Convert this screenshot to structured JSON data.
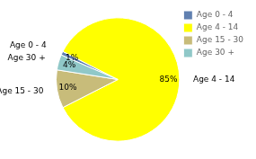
{
  "chart_data": {
    "type": "pie",
    "categories": [
      "Age 0 - 4",
      "Age 4 - 14",
      "Age 15 - 30",
      "Age 30 +"
    ],
    "values": [
      1,
      85,
      10,
      4
    ],
    "value_labels": [
      "1%",
      "85%",
      "10%",
      "4%"
    ],
    "colors": [
      "#6080b0",
      "#ffff00",
      "#c8bc7a",
      "#90c8c8"
    ],
    "data_labels": true,
    "legend": "upper right"
  }
}
